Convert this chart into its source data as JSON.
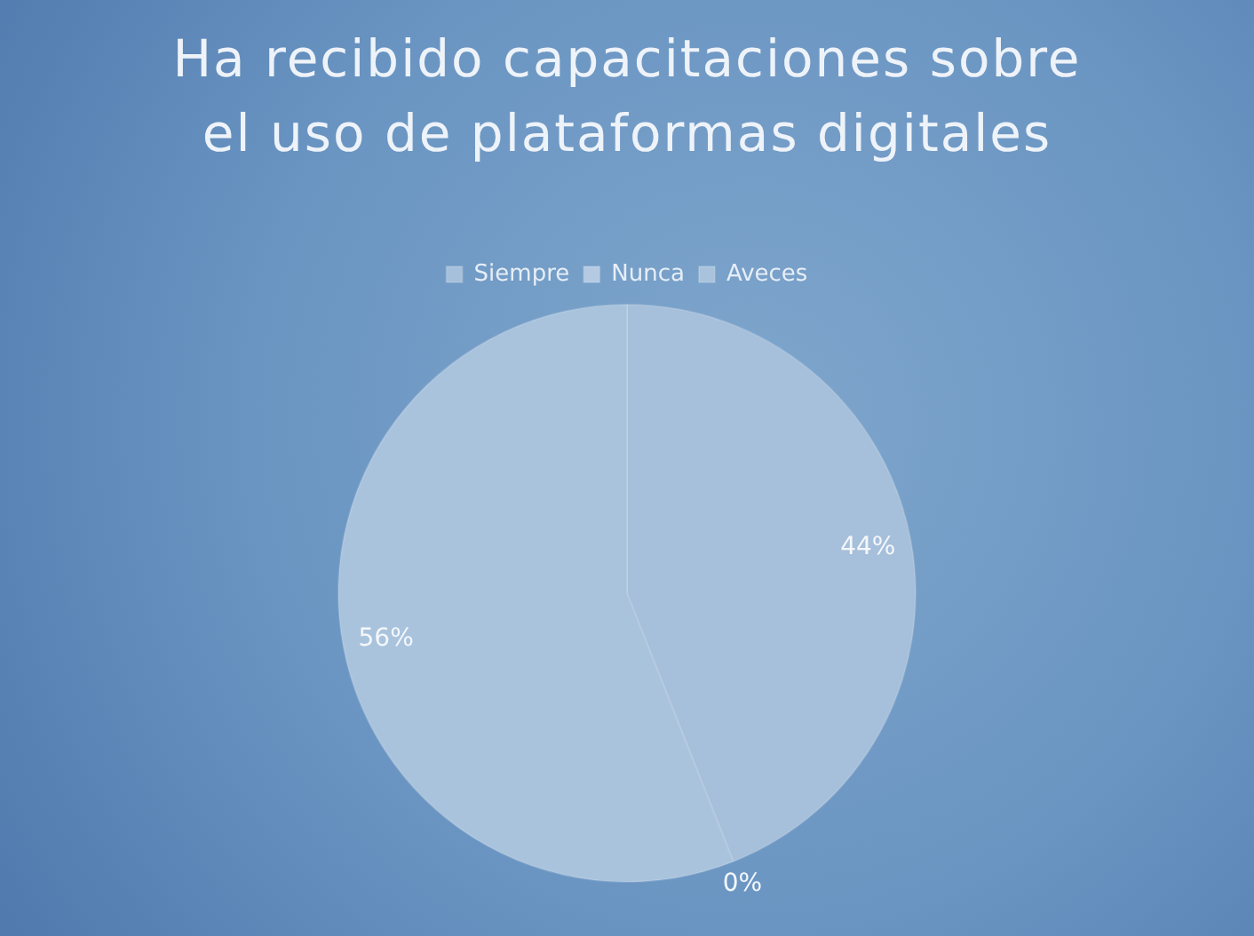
{
  "chart_data": {
    "type": "pie",
    "title": "Ha recibido capacitaciones sobre el uso de plataformas digitales",
    "categories": [
      "Siempre",
      "Nunca",
      "Aveces"
    ],
    "values": [
      44,
      0,
      56
    ],
    "colors": [
      "#a6bfda",
      "#b3cae2",
      "#a9c3dd"
    ],
    "value_labels": [
      "44%",
      "0%",
      "56%"
    ],
    "legend": "top"
  }
}
